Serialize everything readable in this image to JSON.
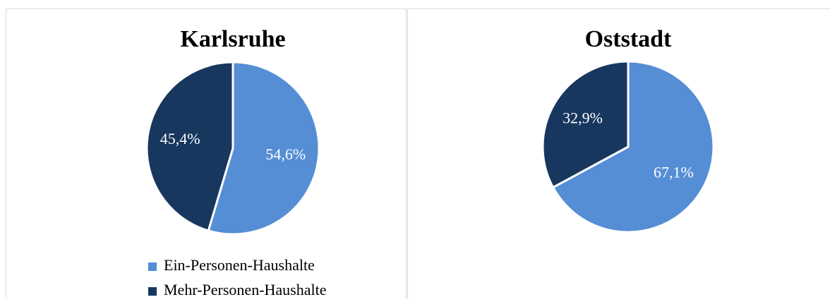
{
  "chart_data": [
    {
      "type": "pie",
      "title": "Karlsruhe",
      "categories": [
        "Ein-Personen-Haushalte",
        "Mehr-Personen-Haushalte"
      ],
      "values": [
        54.6,
        45.4
      ],
      "value_labels": [
        "54,6%",
        "45,4%"
      ],
      "colors": [
        "#558ed5",
        "#17375e"
      ],
      "legend": "bottom"
    },
    {
      "type": "pie",
      "title": "Oststadt",
      "values": [
        67.1,
        32.9
      ],
      "value_labels": [
        "67,1%",
        "32,9%"
      ],
      "colors": [
        "#558ed5",
        "#17375e"
      ]
    }
  ]
}
